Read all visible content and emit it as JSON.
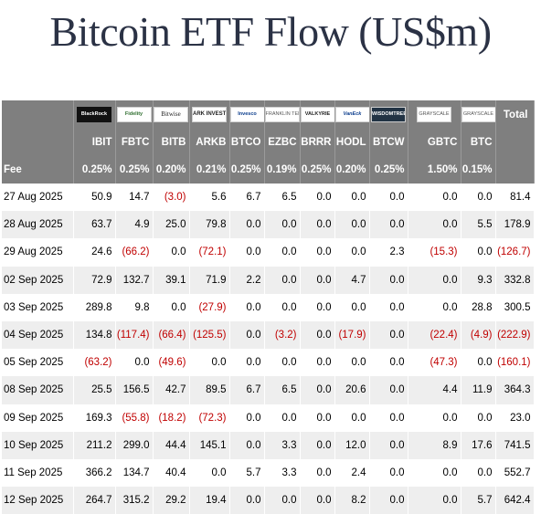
{
  "title": "Bitcoin ETF Flow (US$m)",
  "logos": [
    "BlackRock",
    "Fidelity",
    "Bitwise",
    "ARK INVEST",
    "Invesco",
    "FRANKLIN TEMPLETON",
    "VALKYRIE",
    "VanEck",
    "WISDOMTREE",
    "GRAYSCALE",
    "GRAYSCALE"
  ],
  "total_label": "Total",
  "tickers": [
    "IBIT",
    "FBTC",
    "BITB",
    "ARKB",
    "BTCO",
    "EZBC",
    "BRRR",
    "HODL",
    "BTCW",
    "GBTC",
    "BTC"
  ],
  "fee_label": "Fee",
  "fees": [
    "0.25%",
    "0.25%",
    "0.20%",
    "0.21%",
    "0.25%",
    "0.19%",
    "0.25%",
    "0.20%",
    "0.25%",
    "1.50%",
    "0.15%"
  ],
  "rows": [
    {
      "date": "27 Aug 2025",
      "values": [
        "50.9",
        "14.7",
        "(3.0)",
        "5.6",
        "6.7",
        "6.5",
        "0.0",
        "0.0",
        "0.0",
        "0.0",
        "0.0"
      ],
      "total": "81.4"
    },
    {
      "date": "28 Aug 2025",
      "values": [
        "63.7",
        "4.9",
        "25.0",
        "79.8",
        "0.0",
        "0.0",
        "0.0",
        "0.0",
        "0.0",
        "0.0",
        "5.5"
      ],
      "total": "178.9"
    },
    {
      "date": "29 Aug 2025",
      "values": [
        "24.6",
        "(66.2)",
        "0.0",
        "(72.1)",
        "0.0",
        "0.0",
        "0.0",
        "0.0",
        "2.3",
        "(15.3)",
        "0.0"
      ],
      "total": "(126.7)"
    },
    {
      "date": "02 Sep 2025",
      "values": [
        "72.9",
        "132.7",
        "39.1",
        "71.9",
        "2.2",
        "0.0",
        "0.0",
        "4.7",
        "0.0",
        "0.0",
        "9.3"
      ],
      "total": "332.8"
    },
    {
      "date": "03 Sep 2025",
      "values": [
        "289.8",
        "9.8",
        "0.0",
        "(27.9)",
        "0.0",
        "0.0",
        "0.0",
        "0.0",
        "0.0",
        "0.0",
        "28.8"
      ],
      "total": "300.5"
    },
    {
      "date": "04 Sep 2025",
      "values": [
        "134.8",
        "(117.4)",
        "(66.4)",
        "(125.5)",
        "0.0",
        "(3.2)",
        "0.0",
        "(17.9)",
        "0.0",
        "(22.4)",
        "(4.9)"
      ],
      "total": "(222.9)"
    },
    {
      "date": "05 Sep 2025",
      "values": [
        "(63.2)",
        "0.0",
        "(49.6)",
        "0.0",
        "0.0",
        "0.0",
        "0.0",
        "0.0",
        "0.0",
        "(47.3)",
        "0.0"
      ],
      "total": "(160.1)"
    },
    {
      "date": "08 Sep 2025",
      "values": [
        "25.5",
        "156.5",
        "42.7",
        "89.5",
        "6.7",
        "6.5",
        "0.0",
        "20.6",
        "0.0",
        "4.4",
        "11.9"
      ],
      "total": "364.3"
    },
    {
      "date": "09 Sep 2025",
      "values": [
        "169.3",
        "(55.8)",
        "(18.2)",
        "(72.3)",
        "0.0",
        "0.0",
        "0.0",
        "0.0",
        "0.0",
        "0.0",
        "0.0"
      ],
      "total": "23.0"
    },
    {
      "date": "10 Sep 2025",
      "values": [
        "211.2",
        "299.0",
        "44.4",
        "145.1",
        "0.0",
        "3.3",
        "0.0",
        "12.0",
        "0.0",
        "8.9",
        "17.6"
      ],
      "total": "741.5"
    },
    {
      "date": "11 Sep 2025",
      "values": [
        "366.2",
        "134.7",
        "40.4",
        "0.0",
        "5.7",
        "3.3",
        "0.0",
        "2.4",
        "0.0",
        "0.0",
        "0.0"
      ],
      "total": "552.7"
    },
    {
      "date": "12 Sep 2025",
      "values": [
        "264.7",
        "315.2",
        "29.2",
        "19.4",
        "0.0",
        "0.0",
        "0.0",
        "8.2",
        "0.0",
        "0.0",
        "5.7"
      ],
      "total": "642.4"
    }
  ],
  "colors": {
    "header_bg": "#7f7f7f",
    "negative": "#c00000",
    "title": "#2b3245"
  }
}
